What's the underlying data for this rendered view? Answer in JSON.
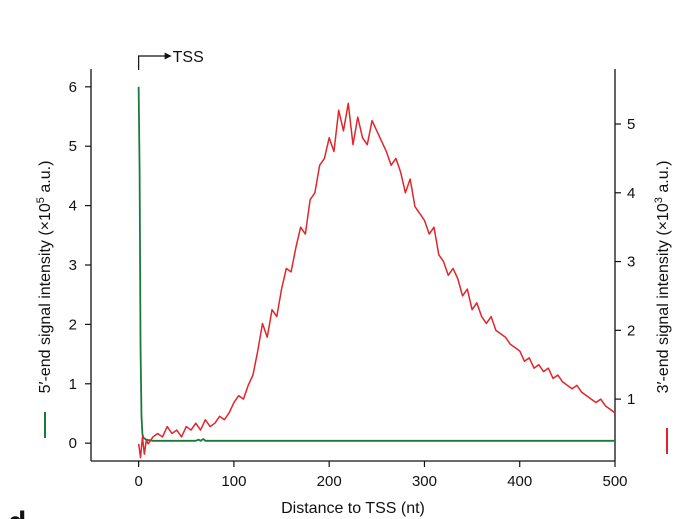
{
  "chart_data": {
    "type": "line",
    "title": "",
    "xlabel": "Distance to TSS (nt)",
    "ylabel_left": {
      "main": "5′-end signal intensity (×10",
      "exponent": "5",
      "tail": " a.u.)"
    },
    "ylabel_right": {
      "main": "3′-end signal intensity (×10",
      "exponent": "3",
      "tail": " a.u.)"
    },
    "xlim": [
      -50,
      500
    ],
    "ylim_left": [
      -0.3,
      6.3
    ],
    "ylim_right": [
      0.1,
      5.8
    ],
    "x_ticks": [
      0,
      100,
      200,
      300,
      400,
      500
    ],
    "y_ticks_left": [
      0,
      1,
      2,
      3,
      4,
      5,
      6
    ],
    "y_ticks_right": [
      1,
      2,
      3,
      4,
      5
    ],
    "annotation": {
      "text": "TSS",
      "x": 0,
      "arrow": "→"
    },
    "panel_label": "d",
    "grid": false,
    "colors": {
      "five_prime": "#1a7a3c",
      "three_prime": "#e0262b",
      "axes": "#111111"
    },
    "series": [
      {
        "axis": "left",
        "color": "#1a7a3c",
        "x": [
          0,
          1,
          2,
          3,
          4,
          5,
          6,
          7,
          8,
          9,
          10,
          12,
          15,
          20,
          30,
          40,
          50,
          60,
          63,
          65,
          68,
          70,
          72,
          80,
          100,
          150,
          200,
          250,
          300,
          350,
          400,
          450,
          500
        ],
        "y": [
          6.0,
          4.6,
          1.6,
          0.45,
          0.15,
          0.09,
          0.08,
          0.07,
          0.06,
          0.06,
          0.05,
          0.05,
          0.04,
          0.04,
          0.04,
          0.04,
          0.04,
          0.04,
          0.06,
          0.04,
          0.07,
          0.04,
          0.04,
          0.04,
          0.04,
          0.04,
          0.04,
          0.04,
          0.04,
          0.04,
          0.04,
          0.04,
          0.04
        ]
      },
      {
        "axis": "right",
        "color": "#e0262b",
        "x": [
          0,
          2,
          4,
          6,
          8,
          10,
          15,
          20,
          25,
          30,
          35,
          40,
          45,
          50,
          55,
          60,
          65,
          70,
          75,
          80,
          85,
          90,
          95,
          100,
          105,
          110,
          115,
          120,
          125,
          130,
          135,
          140,
          145,
          150,
          155,
          160,
          165,
          170,
          175,
          180,
          185,
          190,
          195,
          200,
          205,
          210,
          215,
          220,
          225,
          230,
          235,
          240,
          245,
          250,
          255,
          260,
          265,
          270,
          275,
          280,
          285,
          290,
          295,
          300,
          305,
          310,
          315,
          320,
          325,
          330,
          335,
          340,
          345,
          350,
          355,
          360,
          365,
          370,
          375,
          380,
          385,
          390,
          395,
          400,
          405,
          410,
          415,
          420,
          425,
          430,
          435,
          440,
          445,
          450,
          455,
          460,
          465,
          470,
          475,
          480,
          485,
          490,
          495,
          500
        ],
        "y": [
          0.35,
          0.15,
          0.45,
          0.2,
          0.4,
          0.35,
          0.45,
          0.5,
          0.45,
          0.6,
          0.5,
          0.55,
          0.45,
          0.6,
          0.55,
          0.65,
          0.55,
          0.7,
          0.6,
          0.65,
          0.75,
          0.7,
          0.8,
          0.95,
          1.05,
          1.0,
          1.2,
          1.35,
          1.7,
          2.1,
          1.9,
          2.3,
          2.2,
          2.6,
          2.9,
          2.85,
          3.2,
          3.5,
          3.4,
          3.9,
          4.0,
          4.4,
          4.5,
          4.8,
          4.6,
          5.2,
          4.9,
          5.3,
          4.7,
          5.1,
          4.8,
          4.7,
          5.05,
          4.9,
          4.75,
          4.6,
          4.4,
          4.5,
          4.3,
          4.0,
          4.2,
          3.8,
          3.7,
          3.6,
          3.4,
          3.5,
          3.1,
          3.0,
          2.8,
          2.9,
          2.75,
          2.5,
          2.6,
          2.3,
          2.4,
          2.2,
          2.1,
          2.2,
          2.0,
          1.95,
          1.9,
          1.8,
          1.75,
          1.7,
          1.55,
          1.6,
          1.45,
          1.5,
          1.4,
          1.45,
          1.3,
          1.35,
          1.25,
          1.2,
          1.15,
          1.2,
          1.1,
          1.05,
          1.0,
          0.95,
          1.0,
          0.9,
          0.85,
          0.8
        ]
      }
    ]
  }
}
